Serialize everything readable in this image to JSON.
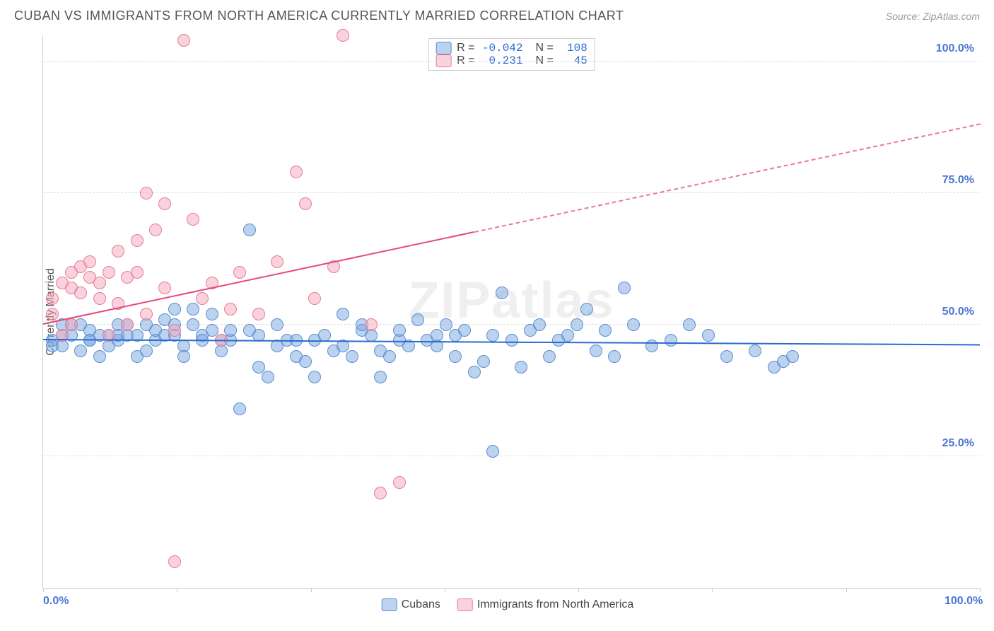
{
  "title": "CUBAN VS IMMIGRANTS FROM NORTH AMERICA CURRENTLY MARRIED CORRELATION CHART",
  "source_label": "Source: ",
  "source_name": "ZipAtlas.com",
  "ylabel": "Currently Married",
  "watermark": "ZIPatlas",
  "chart": {
    "type": "scatter",
    "xlim": [
      0,
      100
    ],
    "ylim": [
      0,
      105
    ],
    "y_ticks": [
      25,
      50,
      75,
      100
    ],
    "y_tick_labels": [
      "25.0%",
      "50.0%",
      "75.0%",
      "100.0%"
    ],
    "x_ticks": [
      0,
      100
    ],
    "x_tick_labels": [
      "0.0%",
      "100.0%"
    ],
    "x_minor_ticks": [
      0,
      14.3,
      28.6,
      42.9,
      57.1,
      71.4,
      85.7,
      100
    ],
    "grid_color": "#dddddd",
    "axis_color": "#cccccc",
    "background_color": "#ffffff",
    "tick_label_color": "#4a76d4",
    "point_radius": 9,
    "series": [
      {
        "name": "Cubans",
        "color_fill": "rgba(122,168,226,0.5)",
        "color_stroke": "#5a8dd0",
        "R": "-0.042",
        "N": "108",
        "trend": {
          "x1": 0,
          "y1": 47,
          "x2": 100,
          "y2": 46,
          "color": "#2a6ad0",
          "dash": false
        },
        "points": [
          [
            1,
            47
          ],
          [
            1,
            46
          ],
          [
            2,
            50
          ],
          [
            2,
            48
          ],
          [
            2,
            46
          ],
          [
            3,
            50
          ],
          [
            3,
            48
          ],
          [
            4,
            45
          ],
          [
            4,
            50
          ],
          [
            5,
            49
          ],
          [
            5,
            47
          ],
          [
            5,
            47
          ],
          [
            6,
            48
          ],
          [
            6,
            44
          ],
          [
            7,
            46
          ],
          [
            7,
            48
          ],
          [
            8,
            50
          ],
          [
            8,
            47
          ],
          [
            8,
            48
          ],
          [
            9,
            48
          ],
          [
            9,
            50
          ],
          [
            10,
            44
          ],
          [
            10,
            48
          ],
          [
            11,
            50
          ],
          [
            11,
            45
          ],
          [
            12,
            47
          ],
          [
            12,
            49
          ],
          [
            13,
            48
          ],
          [
            13,
            51
          ],
          [
            14,
            48
          ],
          [
            14,
            50
          ],
          [
            14,
            53
          ],
          [
            15,
            46
          ],
          [
            15,
            44
          ],
          [
            16,
            50
          ],
          [
            16,
            53
          ],
          [
            17,
            48
          ],
          [
            17,
            47
          ],
          [
            18,
            52
          ],
          [
            18,
            49
          ],
          [
            19,
            47
          ],
          [
            19,
            45
          ],
          [
            20,
            47
          ],
          [
            20,
            49
          ],
          [
            21,
            34
          ],
          [
            22,
            49
          ],
          [
            22,
            68
          ],
          [
            23,
            42
          ],
          [
            23,
            48
          ],
          [
            24,
            40
          ],
          [
            25,
            46
          ],
          [
            25,
            50
          ],
          [
            26,
            47
          ],
          [
            27,
            47
          ],
          [
            27,
            44
          ],
          [
            28,
            43
          ],
          [
            29,
            47
          ],
          [
            29,
            40
          ],
          [
            30,
            48
          ],
          [
            31,
            45
          ],
          [
            32,
            52
          ],
          [
            32,
            46
          ],
          [
            33,
            44
          ],
          [
            34,
            49
          ],
          [
            34,
            50
          ],
          [
            35,
            48
          ],
          [
            36,
            45
          ],
          [
            36,
            40
          ],
          [
            37,
            44
          ],
          [
            38,
            47
          ],
          [
            38,
            49
          ],
          [
            39,
            46
          ],
          [
            40,
            51
          ],
          [
            41,
            47
          ],
          [
            42,
            48
          ],
          [
            42,
            46
          ],
          [
            43,
            50
          ],
          [
            44,
            48
          ],
          [
            44,
            44
          ],
          [
            45,
            49
          ],
          [
            46,
            41
          ],
          [
            47,
            43
          ],
          [
            48,
            48
          ],
          [
            48,
            26
          ],
          [
            49,
            56
          ],
          [
            50,
            47
          ],
          [
            51,
            42
          ],
          [
            52,
            49
          ],
          [
            53,
            50
          ],
          [
            54,
            44
          ],
          [
            55,
            47
          ],
          [
            56,
            48
          ],
          [
            57,
            50
          ],
          [
            58,
            53
          ],
          [
            59,
            45
          ],
          [
            60,
            49
          ],
          [
            61,
            44
          ],
          [
            62,
            57
          ],
          [
            63,
            50
          ],
          [
            65,
            46
          ],
          [
            67,
            47
          ],
          [
            69,
            50
          ],
          [
            71,
            48
          ],
          [
            73,
            44
          ],
          [
            76,
            45
          ],
          [
            78,
            42
          ],
          [
            79,
            43
          ],
          [
            80,
            44
          ]
        ]
      },
      {
        "name": "Immigrants from North America",
        "color_fill": "rgba(245,165,186,0.5)",
        "color_stroke": "#e77a9b",
        "R": "0.231",
        "N": "45",
        "trend": {
          "x1": 0,
          "y1": 50,
          "x2": 100,
          "y2": 88,
          "color": "#e54a7a",
          "solid_until_x": 46
        },
        "points": [
          [
            1,
            52
          ],
          [
            1,
            55
          ],
          [
            2,
            48
          ],
          [
            2,
            58
          ],
          [
            3,
            50
          ],
          [
            3,
            57
          ],
          [
            3,
            60
          ],
          [
            4,
            56
          ],
          [
            4,
            61
          ],
          [
            5,
            59
          ],
          [
            5,
            62
          ],
          [
            6,
            55
          ],
          [
            6,
            58
          ],
          [
            7,
            60
          ],
          [
            7,
            48
          ],
          [
            8,
            54
          ],
          [
            8,
            64
          ],
          [
            9,
            59
          ],
          [
            9,
            50
          ],
          [
            10,
            66
          ],
          [
            10,
            60
          ],
          [
            11,
            52
          ],
          [
            11,
            75
          ],
          [
            12,
            68
          ],
          [
            13,
            73
          ],
          [
            13,
            57
          ],
          [
            14,
            5
          ],
          [
            14,
            49
          ],
          [
            15,
            104
          ],
          [
            16,
            70
          ],
          [
            17,
            55
          ],
          [
            18,
            58
          ],
          [
            19,
            47
          ],
          [
            20,
            53
          ],
          [
            21,
            60
          ],
          [
            23,
            52
          ],
          [
            25,
            62
          ],
          [
            27,
            79
          ],
          [
            28,
            73
          ],
          [
            29,
            55
          ],
          [
            31,
            61
          ],
          [
            32,
            105
          ],
          [
            35,
            50
          ],
          [
            36,
            18
          ],
          [
            38,
            20
          ]
        ]
      }
    ]
  },
  "legend": {
    "series1": "Cubans",
    "series2": "Immigrants from North America"
  },
  "stats_box": {
    "R_label": "R =",
    "N_label": "N ="
  }
}
